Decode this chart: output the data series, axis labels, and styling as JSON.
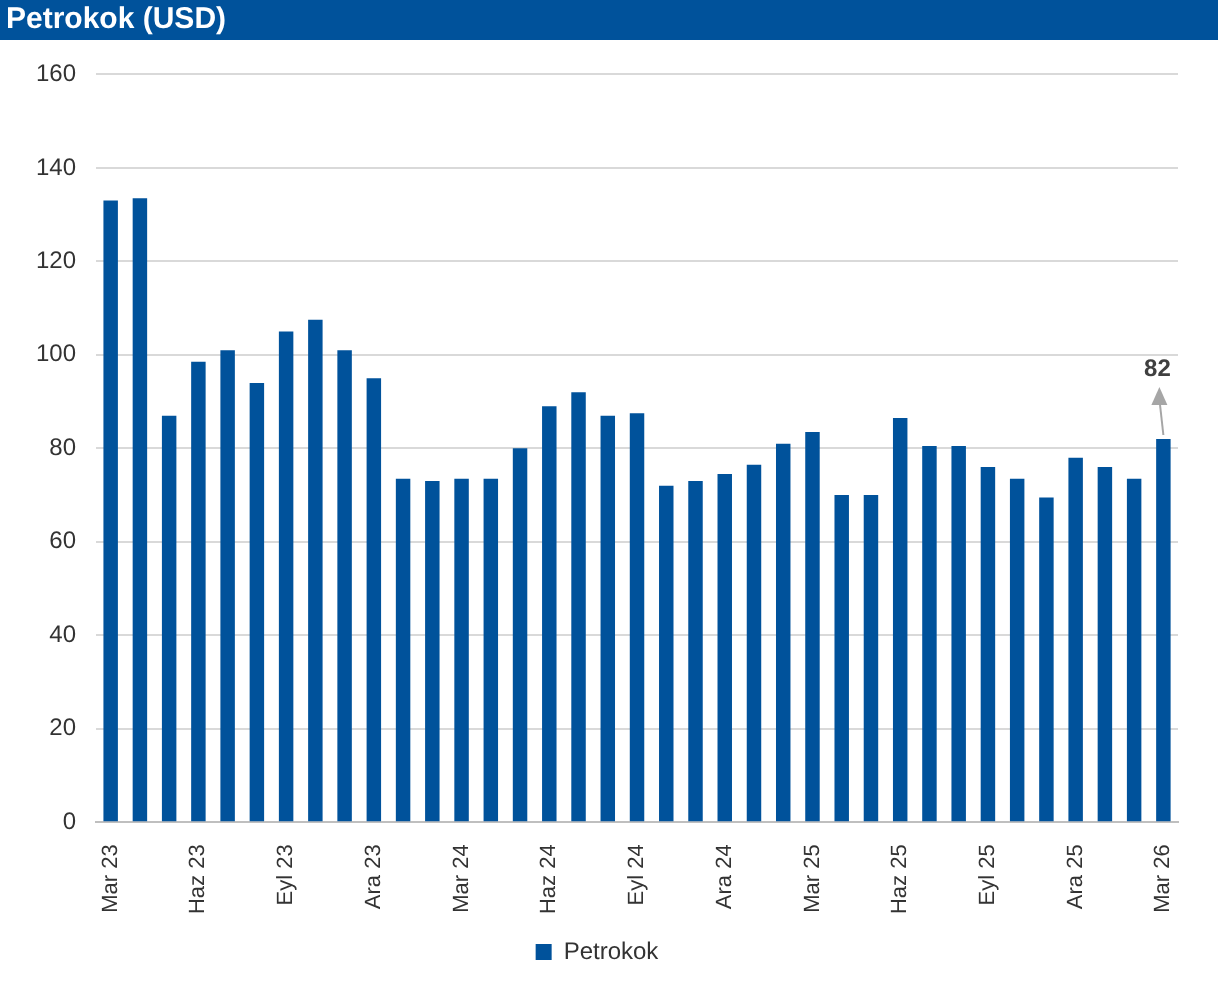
{
  "chart_data": {
    "type": "bar",
    "title": "Petrokok (USD)",
    "categories": [
      "Mar 23",
      null,
      null,
      "Haz 23",
      null,
      null,
      "Eyl 23",
      null,
      null,
      "Ara 23",
      null,
      null,
      "Mar 24",
      null,
      null,
      "Haz 24",
      null,
      null,
      "Eyl 24",
      null,
      null,
      "Ara 24",
      null,
      null,
      "Mar 25",
      null,
      null,
      "Haz 25",
      null,
      null,
      "Eyl 25",
      null,
      null,
      "Ara 25",
      null,
      null,
      "Mar 26"
    ],
    "series": [
      {
        "name": "Petrokok",
        "color": "#00529b",
        "values": [
          133,
          133.5,
          87,
          98.5,
          101,
          94,
          105,
          107.5,
          101,
          95,
          73.5,
          73,
          73.5,
          73.5,
          80,
          89,
          92,
          87,
          87.5,
          72,
          73,
          74.5,
          76.5,
          81,
          83.5,
          70,
          70,
          86.5,
          80.5,
          80.5,
          76,
          73.5,
          69.5,
          78,
          76,
          73.5,
          82
        ]
      }
    ],
    "annotations": [
      {
        "text": "82",
        "x": "Mar 26",
        "y": 82
      }
    ],
    "ylim": [
      0,
      160
    ],
    "yticks": [
      0,
      20,
      40,
      60,
      80,
      100,
      120,
      140,
      160
    ],
    "grid": "y",
    "legend": "bottom"
  }
}
